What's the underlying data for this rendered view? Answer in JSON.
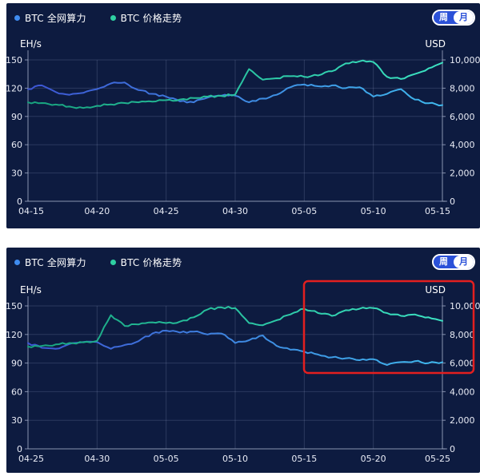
{
  "colors": {
    "page_background": "#ffffff",
    "card_background": "#0d1b40",
    "grid_line": "rgba(205,218,255,0.16)",
    "axis_line": "rgba(170,180,205,0.75)",
    "tick_text": "#e8ebf5",
    "legend_text": "#ffffff",
    "toggle_blue": "#2b51d8",
    "highlight_red": "#e31f1f"
  },
  "legend": [
    {
      "label": "BTC 全网算力",
      "dot_color": "#3f8cf0"
    },
    {
      "label": "BTC 价格走势",
      "dot_color": "#2fd0a2"
    }
  ],
  "toggle": {
    "options": [
      "周",
      "月"
    ],
    "selected": "月"
  },
  "chart_data": [
    {
      "type": "line",
      "title": "",
      "left_axis": {
        "title": "EH/s",
        "ticks": [
          "0",
          "30",
          "60",
          "90",
          "120",
          "150"
        ],
        "min": 0,
        "max": 150
      },
      "right_axis": {
        "title": "USD",
        "ticks": [
          "0",
          "2,000",
          "4,000",
          "6,000",
          "8,000",
          "10,000"
        ],
        "min": 0,
        "max": 10000
      },
      "x_tick_labels": [
        "04-15",
        "04-20",
        "04-25",
        "04-30",
        "05-05",
        "05-10",
        "05-15"
      ],
      "x": [
        "04-15",
        "04-16",
        "04-17",
        "04-18",
        "04-19",
        "04-20",
        "04-21",
        "04-22",
        "04-23",
        "04-24",
        "04-25",
        "04-26",
        "04-27",
        "04-28",
        "04-29",
        "04-30",
        "05-01",
        "05-02",
        "05-03",
        "05-04",
        "05-05",
        "05-06",
        "05-07",
        "05-08",
        "05-09",
        "05-10",
        "05-11",
        "05-12",
        "05-13",
        "05-14",
        "05-15"
      ],
      "series": [
        {
          "name": "BTC 全网算力",
          "axis": "left",
          "gradient": [
            "#3d55d4",
            "#3fb9ee"
          ],
          "values": [
            119,
            123,
            116,
            113,
            115,
            119,
            125,
            126,
            118,
            114,
            111,
            106,
            105,
            110,
            112,
            112,
            105,
            109,
            113,
            121,
            124,
            122,
            123,
            120,
            121,
            111,
            114,
            119,
            108,
            104,
            102
          ]
        },
        {
          "name": "BTC 价格走势",
          "axis": "right",
          "gradient": [
            "#17a37e",
            "#3ce3c3"
          ],
          "values": [
            7000,
            6950,
            6850,
            6700,
            6600,
            6750,
            6850,
            6950,
            7000,
            7050,
            7150,
            7200,
            7300,
            7400,
            7450,
            7550,
            9350,
            8600,
            8700,
            8850,
            8800,
            8900,
            9200,
            9750,
            9900,
            9850,
            8800,
            8650,
            9000,
            9400,
            9800
          ]
        }
      ],
      "grid": true,
      "legend_position": "top-left"
    },
    {
      "type": "line",
      "title": "",
      "left_axis": {
        "title": "EH/s",
        "ticks": [
          "0",
          "30",
          "60",
          "90",
          "120",
          "150"
        ],
        "min": 0,
        "max": 150
      },
      "right_axis": {
        "title": "USD",
        "ticks": [
          "0",
          "2,000",
          "4,000",
          "6,000",
          "8,000",
          "10,000"
        ],
        "min": 0,
        "max": 10000
      },
      "x_tick_labels": [
        "04-25",
        "04-30",
        "05-05",
        "05-10",
        "05-15",
        "05-20",
        "05-25"
      ],
      "x": [
        "04-25",
        "04-26",
        "04-27",
        "04-28",
        "04-29",
        "04-30",
        "05-01",
        "05-02",
        "05-03",
        "05-04",
        "05-05",
        "05-06",
        "05-07",
        "05-08",
        "05-09",
        "05-10",
        "05-11",
        "05-12",
        "05-13",
        "05-14",
        "05-15",
        "05-16",
        "05-17",
        "05-18",
        "05-19",
        "05-20",
        "05-21",
        "05-22",
        "05-23",
        "05-24",
        "05-25"
      ],
      "series": [
        {
          "name": "BTC 全网算力",
          "axis": "left",
          "gradient": [
            "#3d55d4",
            "#3fb9ee"
          ],
          "values": [
            111,
            106,
            105,
            110,
            112,
            112,
            105,
            109,
            113,
            121,
            124,
            122,
            123,
            120,
            121,
            111,
            114,
            119,
            108,
            104,
            102,
            99,
            96,
            95,
            93,
            94,
            88,
            91,
            92,
            90,
            91
          ]
        },
        {
          "name": "BTC 价格走势",
          "axis": "right",
          "gradient": [
            "#17a37e",
            "#3ce3c3"
          ],
          "values": [
            7150,
            7200,
            7300,
            7400,
            7450,
            7550,
            9350,
            8600,
            8700,
            8850,
            8800,
            8900,
            9200,
            9750,
            9900,
            9850,
            8800,
            8650,
            9000,
            9400,
            9800,
            9500,
            9300,
            9700,
            9800,
            9850,
            9500,
            9300,
            9400,
            9200,
            8950
          ]
        }
      ],
      "grid": true,
      "legend_position": "top-left",
      "highlight_box": {
        "color": "#e31f1f",
        "from_date": "05-15",
        "to_date": "05-25"
      }
    }
  ]
}
